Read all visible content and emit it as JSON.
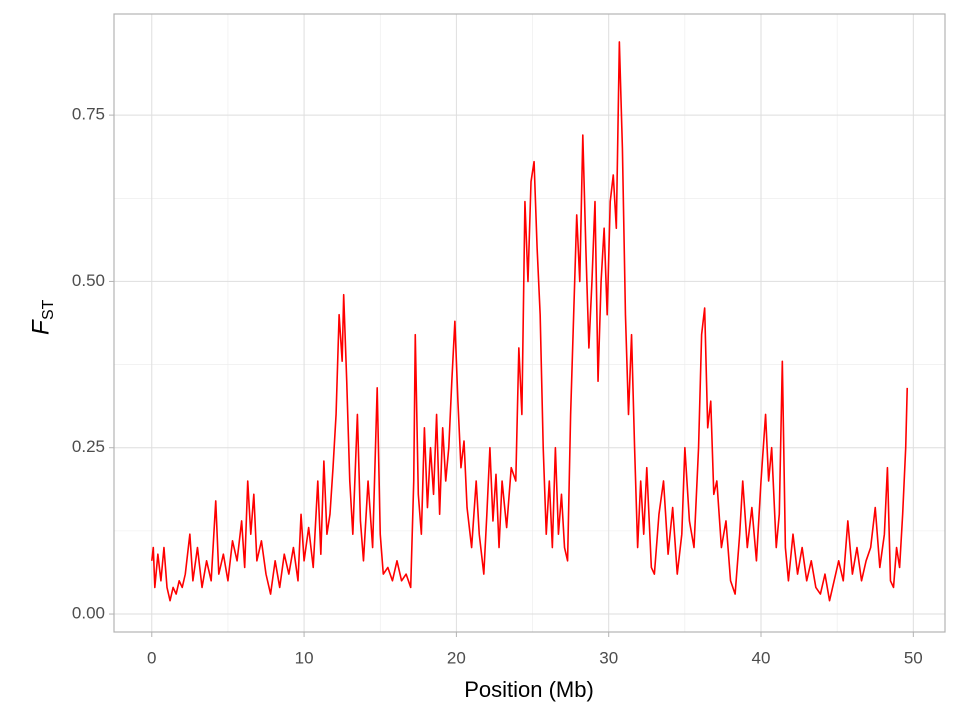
{
  "chart_data": {
    "type": "line",
    "xlabel": "Position (Mb)",
    "ylabel": "F",
    "ylabel_subscript": "ST",
    "xlim": [
      -2.48,
      52.08
    ],
    "ylim": [
      -0.027,
      0.902
    ],
    "xticks": [
      0,
      10,
      20,
      30,
      40,
      50
    ],
    "yticks": [
      {
        "value": 0,
        "label": "0.00"
      },
      {
        "value": 0.25,
        "label": "0.25"
      },
      {
        "value": 0.5,
        "label": "0.50"
      },
      {
        "value": 0.75,
        "label": "0.75"
      }
    ],
    "xminor": [
      5,
      15,
      25,
      35,
      45
    ],
    "yminor": [
      0.125,
      0.375,
      0.625
    ],
    "grid": true,
    "series": [
      {
        "color": "#ff0000",
        "x": [
          0,
          0.1,
          0.2,
          0.4,
          0.6,
          0.8,
          1.0,
          1.2,
          1.4,
          1.6,
          1.8,
          2.0,
          2.2,
          2.5,
          2.7,
          3.0,
          3.3,
          3.6,
          3.9,
          4.2,
          4.4,
          4.7,
          5.0,
          5.3,
          5.6,
          5.9,
          6.1,
          6.3,
          6.5,
          6.7,
          6.9,
          7.2,
          7.5,
          7.8,
          8.1,
          8.4,
          8.7,
          9.0,
          9.3,
          9.6,
          9.8,
          10.0,
          10.3,
          10.6,
          10.9,
          11.1,
          11.3,
          11.5,
          11.7,
          11.9,
          12.1,
          12.3,
          12.5,
          12.6,
          12.8,
          13.0,
          13.2,
          13.5,
          13.7,
          13.9,
          14.2,
          14.5,
          14.8,
          15.0,
          15.2,
          15.5,
          15.8,
          16.1,
          16.4,
          16.7,
          17.0,
          17.2,
          17.3,
          17.5,
          17.7,
          17.9,
          18.1,
          18.3,
          18.5,
          18.7,
          18.9,
          19.1,
          19.3,
          19.5,
          19.7,
          19.9,
          20.1,
          20.3,
          20.5,
          20.7,
          21.0,
          21.3,
          21.5,
          21.8,
          22.0,
          22.2,
          22.4,
          22.6,
          22.8,
          23.0,
          23.3,
          23.6,
          23.9,
          24.1,
          24.3,
          24.5,
          24.7,
          24.9,
          25.1,
          25.3,
          25.5,
          25.7,
          25.9,
          26.1,
          26.3,
          26.5,
          26.7,
          26.9,
          27.1,
          27.3,
          27.5,
          27.7,
          27.9,
          28.1,
          28.3,
          28.5,
          28.7,
          28.9,
          29.1,
          29.3,
          29.5,
          29.7,
          29.9,
          30.1,
          30.3,
          30.5,
          30.7,
          30.9,
          31.1,
          31.3,
          31.5,
          31.7,
          31.9,
          32.1,
          32.3,
          32.5,
          32.8,
          33.0,
          33.3,
          33.6,
          33.9,
          34.2,
          34.5,
          34.8,
          35.0,
          35.3,
          35.6,
          35.9,
          36.1,
          36.3,
          36.5,
          36.7,
          36.9,
          37.1,
          37.4,
          37.7,
          38.0,
          38.3,
          38.6,
          38.8,
          39.1,
          39.4,
          39.7,
          40.0,
          40.3,
          40.5,
          40.7,
          41.0,
          41.2,
          41.4,
          41.6,
          41.8,
          42.1,
          42.4,
          42.7,
          43.0,
          43.3,
          43.6,
          43.9,
          44.2,
          44.5,
          44.8,
          45.1,
          45.4,
          45.7,
          46.0,
          46.3,
          46.6,
          46.9,
          47.2,
          47.5,
          47.8,
          48.1,
          48.3,
          48.5,
          48.7,
          48.9,
          49.1,
          49.3,
          49.5,
          49.6
        ],
        "values": [
          0.08,
          0.1,
          0.04,
          0.09,
          0.05,
          0.1,
          0.04,
          0.02,
          0.04,
          0.03,
          0.05,
          0.04,
          0.06,
          0.12,
          0.05,
          0.1,
          0.04,
          0.08,
          0.05,
          0.17,
          0.06,
          0.09,
          0.05,
          0.11,
          0.08,
          0.14,
          0.07,
          0.2,
          0.12,
          0.18,
          0.08,
          0.11,
          0.06,
          0.03,
          0.08,
          0.04,
          0.09,
          0.06,
          0.1,
          0.05,
          0.15,
          0.08,
          0.13,
          0.07,
          0.2,
          0.09,
          0.23,
          0.12,
          0.15,
          0.22,
          0.3,
          0.45,
          0.38,
          0.48,
          0.35,
          0.2,
          0.12,
          0.3,
          0.14,
          0.08,
          0.2,
          0.1,
          0.34,
          0.12,
          0.06,
          0.07,
          0.05,
          0.08,
          0.05,
          0.06,
          0.04,
          0.2,
          0.42,
          0.18,
          0.12,
          0.28,
          0.16,
          0.25,
          0.18,
          0.3,
          0.15,
          0.28,
          0.2,
          0.25,
          0.35,
          0.44,
          0.32,
          0.22,
          0.26,
          0.16,
          0.1,
          0.2,
          0.12,
          0.06,
          0.15,
          0.25,
          0.14,
          0.21,
          0.1,
          0.2,
          0.13,
          0.22,
          0.2,
          0.4,
          0.3,
          0.62,
          0.5,
          0.65,
          0.68,
          0.55,
          0.45,
          0.25,
          0.12,
          0.2,
          0.1,
          0.25,
          0.12,
          0.18,
          0.1,
          0.08,
          0.3,
          0.45,
          0.6,
          0.5,
          0.72,
          0.55,
          0.4,
          0.5,
          0.62,
          0.35,
          0.5,
          0.58,
          0.45,
          0.62,
          0.66,
          0.58,
          0.86,
          0.7,
          0.45,
          0.3,
          0.42,
          0.25,
          0.1,
          0.2,
          0.12,
          0.22,
          0.07,
          0.06,
          0.15,
          0.2,
          0.09,
          0.16,
          0.06,
          0.12,
          0.25,
          0.14,
          0.1,
          0.25,
          0.42,
          0.46,
          0.28,
          0.32,
          0.18,
          0.2,
          0.1,
          0.14,
          0.05,
          0.03,
          0.12,
          0.2,
          0.1,
          0.16,
          0.08,
          0.2,
          0.3,
          0.2,
          0.25,
          0.1,
          0.15,
          0.38,
          0.1,
          0.05,
          0.12,
          0.06,
          0.1,
          0.05,
          0.08,
          0.04,
          0.03,
          0.06,
          0.02,
          0.05,
          0.08,
          0.05,
          0.14,
          0.06,
          0.1,
          0.05,
          0.08,
          0.1,
          0.16,
          0.07,
          0.12,
          0.22,
          0.05,
          0.04,
          0.1,
          0.07,
          0.15,
          0.25,
          0.34
        ]
      }
    ]
  }
}
